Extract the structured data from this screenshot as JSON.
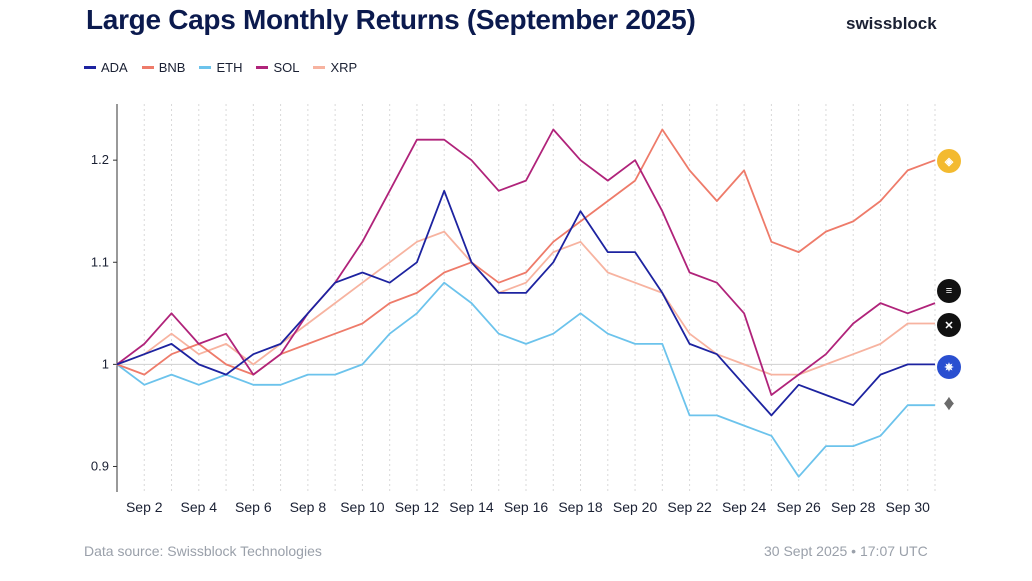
{
  "title": "Large Caps Monthly Returns (September 2025)",
  "brand": "swissblock",
  "footer": {
    "source": "Data source: Swissblock Technologies",
    "timestamp": "30 Sept 2025 • 17:07 UTC"
  },
  "coins": [
    {
      "name": "BNB",
      "icon": "bnb-icon",
      "color": "#f3ba2f"
    },
    {
      "name": "SOL",
      "icon": "sol-icon",
      "color": "#111111"
    },
    {
      "name": "XRP",
      "icon": "xrp-icon",
      "color": "#111111"
    },
    {
      "name": "ADA",
      "icon": "ada-icon",
      "color": "#2a4fd0"
    },
    {
      "name": "ETH",
      "icon": "eth-icon",
      "color": "#6b6b6b"
    }
  ],
  "chart_data": {
    "type": "line",
    "title": "Large Caps Monthly Returns (September 2025)",
    "xlabel": "",
    "ylabel": "",
    "x": [
      1,
      2,
      3,
      4,
      5,
      6,
      7,
      8,
      9,
      10,
      11,
      12,
      13,
      14,
      15,
      16,
      17,
      18,
      19,
      20,
      21,
      22,
      23,
      24,
      25,
      26,
      27,
      28,
      29,
      30,
      31
    ],
    "xlim": [
      1,
      31
    ],
    "ylim": [
      0.875,
      1.255
    ],
    "yticks": [
      0.9,
      1.0,
      1.1,
      1.2
    ],
    "ytick_labels": [
      "0.9",
      "1",
      "1.1",
      "1.2"
    ],
    "xticks": [
      2,
      4,
      6,
      8,
      10,
      12,
      14,
      16,
      18,
      20,
      22,
      24,
      26,
      28,
      30
    ],
    "xtick_labels": [
      "Sep 2",
      "Sep 4",
      "Sep 6",
      "Sep 8",
      "Sep 10",
      "Sep 12",
      "Sep 14",
      "Sep 16",
      "Sep 18",
      "Sep 20",
      "Sep 22",
      "Sep 24",
      "Sep 26",
      "Sep 28",
      "Sep 30"
    ],
    "baseline": 1.0,
    "grid": "vertical dotted",
    "legend_position": "top-left",
    "series": [
      {
        "name": "ADA",
        "color": "#1d23a0",
        "values": [
          1.0,
          1.01,
          1.02,
          1.0,
          0.99,
          1.01,
          1.02,
          1.05,
          1.08,
          1.09,
          1.08,
          1.1,
          1.17,
          1.1,
          1.07,
          1.07,
          1.1,
          1.15,
          1.11,
          1.11,
          1.07,
          1.02,
          1.01,
          0.98,
          0.95,
          0.98,
          0.97,
          0.96,
          0.99,
          1.0,
          1.0
        ]
      },
      {
        "name": "BNB",
        "color": "#ee7b6a",
        "values": [
          1.0,
          0.99,
          1.01,
          1.02,
          1.0,
          0.99,
          1.01,
          1.02,
          1.03,
          1.04,
          1.06,
          1.07,
          1.09,
          1.1,
          1.08,
          1.09,
          1.12,
          1.14,
          1.16,
          1.18,
          1.23,
          1.19,
          1.16,
          1.19,
          1.12,
          1.11,
          1.13,
          1.14,
          1.16,
          1.19,
          1.2
        ]
      },
      {
        "name": "ETH",
        "color": "#6cc3ec",
        "values": [
          1.0,
          0.98,
          0.99,
          0.98,
          0.99,
          0.98,
          0.98,
          0.99,
          0.99,
          1.0,
          1.03,
          1.05,
          1.08,
          1.06,
          1.03,
          1.02,
          1.03,
          1.05,
          1.03,
          1.02,
          1.02,
          0.95,
          0.95,
          0.94,
          0.93,
          0.89,
          0.92,
          0.92,
          0.93,
          0.96,
          0.96
        ]
      },
      {
        "name": "SOL",
        "color": "#b0237a",
        "values": [
          1.0,
          1.02,
          1.05,
          1.02,
          1.03,
          0.99,
          1.01,
          1.05,
          1.08,
          1.12,
          1.17,
          1.22,
          1.22,
          1.2,
          1.17,
          1.18,
          1.23,
          1.2,
          1.18,
          1.2,
          1.15,
          1.09,
          1.08,
          1.05,
          0.97,
          0.99,
          1.01,
          1.04,
          1.06,
          1.05,
          1.06
        ]
      },
      {
        "name": "XRP",
        "color": "#f7b3a0",
        "values": [
          1.0,
          1.01,
          1.03,
          1.01,
          1.02,
          1.0,
          1.02,
          1.04,
          1.06,
          1.08,
          1.1,
          1.12,
          1.13,
          1.1,
          1.07,
          1.08,
          1.11,
          1.12,
          1.09,
          1.08,
          1.07,
          1.03,
          1.01,
          1.0,
          0.99,
          0.99,
          1.0,
          1.01,
          1.02,
          1.04,
          1.04
        ]
      }
    ]
  }
}
